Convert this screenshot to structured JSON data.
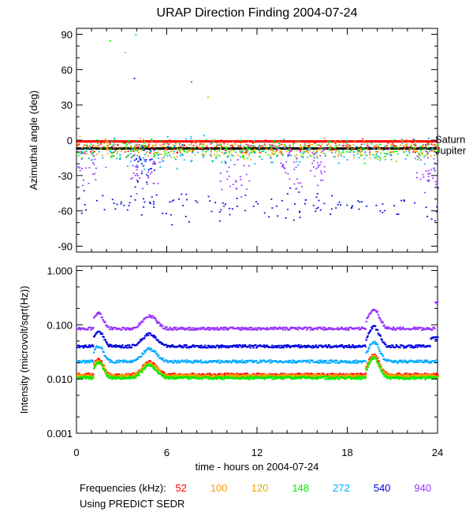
{
  "chart_data": [
    {
      "type": "scatter",
      "title": "URAP Direction Finding  2004-07-24",
      "xlabel": "time - hours on 2004-07-24",
      "ylabel": "Azimuthal angle (deg)",
      "xlim": [
        0,
        24
      ],
      "ylim": [
        -95,
        95
      ],
      "yticks": [
        "90",
        "60",
        "30",
        "0",
        "-30",
        "-60",
        "-90"
      ],
      "ytick_values": [
        90,
        60,
        30,
        0,
        -30,
        -60,
        -90
      ],
      "reference_lines": [
        {
          "name": "Saturn",
          "value": -1,
          "color": "#ff0000"
        },
        {
          "name": "Jupiter",
          "value": -7,
          "color": "#000000"
        }
      ],
      "series": [
        {
          "name": "52",
          "color": "#ff0000",
          "mean": -5,
          "spread": 4
        },
        {
          "name": "100",
          "color": "#ff9900",
          "mean": -6,
          "spread": 5
        },
        {
          "name": "120",
          "color": "#ddaa00",
          "mean": -7,
          "spread": 6
        },
        {
          "name": "148",
          "color": "#00ee00",
          "mean": -8,
          "spread": 6
        },
        {
          "name": "272",
          "color": "#00aaff",
          "mean": -10,
          "spread": 9
        },
        {
          "name": "540",
          "color": "#0000dd",
          "mean": -55,
          "spread": 10
        },
        {
          "name": "940",
          "color": "#9933ff",
          "mean": -30,
          "spread": 15
        }
      ]
    },
    {
      "type": "line",
      "xlabel": "time - hours on 2004-07-24",
      "ylabel": "Intensity (microvolt/sqrt(Hz))",
      "xlim": [
        0,
        24
      ],
      "ylim": [
        0.001,
        1.2
      ],
      "yscale": "log",
      "yticks": [
        "1.000",
        "0.100",
        "0.010",
        "0.001"
      ],
      "ytick_values": [
        1.0,
        0.1,
        0.01,
        0.001
      ],
      "xticks": [
        "0",
        "6",
        "12",
        "18",
        "24"
      ],
      "xtick_values": [
        0,
        6,
        12,
        18,
        24
      ],
      "series": [
        {
          "name": "52",
          "color": "#ff0000",
          "baseline": 0.012
        },
        {
          "name": "100",
          "color": "#ff9900",
          "baseline": 0.0115
        },
        {
          "name": "120",
          "color": "#ddaa00",
          "baseline": 0.011
        },
        {
          "name": "148",
          "color": "#00ee00",
          "baseline": 0.0105
        },
        {
          "name": "272",
          "color": "#00aaff",
          "baseline": 0.021
        },
        {
          "name": "540",
          "color": "#0000dd",
          "baseline": 0.04
        },
        {
          "name": "940",
          "color": "#9933ff",
          "baseline": 0.085
        }
      ]
    }
  ],
  "footer": {
    "frequencies_label": "Frequencies (kHz):",
    "frequencies": [
      {
        "value": "52",
        "color": "#ff0000"
      },
      {
        "value": "100",
        "color": "#ff9900"
      },
      {
        "value": "120",
        "color": "#ddaa00"
      },
      {
        "value": "148",
        "color": "#00ee00"
      },
      {
        "value": "272",
        "color": "#00aaff"
      },
      {
        "value": "540",
        "color": "#0000dd"
      },
      {
        "value": "940",
        "color": "#9933ff"
      }
    ],
    "source_note": "Using PREDICT SEDR"
  }
}
